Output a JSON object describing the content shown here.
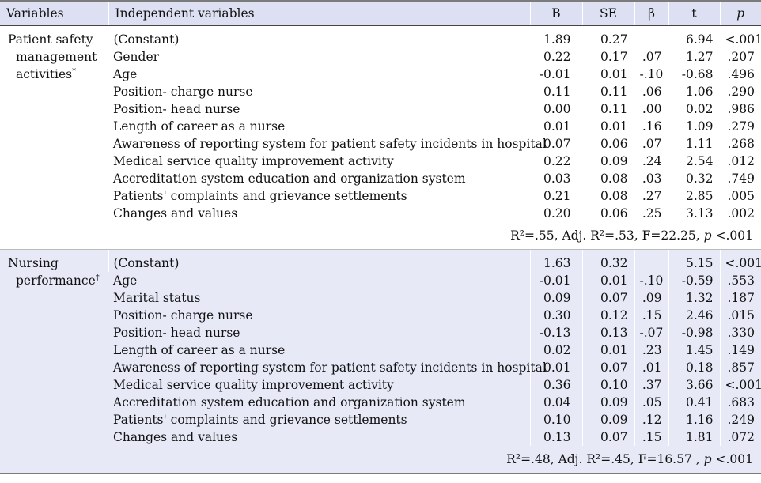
{
  "headers": {
    "variables": "Variables",
    "independent": "Independent variables",
    "B": "B",
    "SE": "SE",
    "beta": "β",
    "t": "t",
    "p": "p"
  },
  "groups": [
    {
      "label_line1": "Patient safety",
      "label_line2": "management",
      "label_line3": "activities",
      "label_mark": "*",
      "rows": [
        {
          "name": "(Constant)",
          "B": "1.89",
          "SE": "0.27",
          "beta": "",
          "t": "6.94",
          "p": "<.001"
        },
        {
          "name": "Gender",
          "B": "0.22",
          "SE": "0.17",
          "beta": ".07",
          "t": "1.27",
          "p": ".207"
        },
        {
          "name": "Age",
          "B": "-0.01",
          "SE": "0.01",
          "beta": "-.10",
          "t": "-0.68",
          "p": ".496"
        },
        {
          "name": "Position- charge nurse",
          "B": "0.11",
          "SE": "0.11",
          "beta": ".06",
          "t": "1.06",
          "p": ".290"
        },
        {
          "name": "Position- head nurse",
          "B": "0.00",
          "SE": "0.11",
          "beta": ".00",
          "t": "0.02",
          "p": ".986"
        },
        {
          "name": "Length of career as a nurse",
          "B": "0.01",
          "SE": "0.01",
          "beta": ".16",
          "t": "1.09",
          "p": ".279"
        },
        {
          "name": "Awareness of reporting system for patient safety incidents in hospital",
          "B": "0.07",
          "SE": "0.06",
          "beta": ".07",
          "t": "1.11",
          "p": ".268"
        },
        {
          "name": "Medical service quality improvement activity",
          "B": "0.22",
          "SE": "0.09",
          "beta": ".24",
          "t": "2.54",
          "p": ".012"
        },
        {
          "name": "Accreditation system education and organization system",
          "B": "0.03",
          "SE": "0.08",
          "beta": ".03",
          "t": "0.32",
          "p": ".749"
        },
        {
          "name": "Patients' complaints and grievance settlements",
          "B": "0.21",
          "SE": "0.08",
          "beta": ".27",
          "t": "2.85",
          "p": ".005"
        },
        {
          "name": "Changes and values",
          "B": "0.20",
          "SE": "0.06",
          "beta": ".25",
          "t": "3.13",
          "p": ".002"
        }
      ],
      "summary": {
        "r2": "R²=.55, Adj. R²=.53, F=22.25,",
        "p_label": "p",
        "p_value": "<.001"
      }
    },
    {
      "label_line1": "Nursing",
      "label_line2": "performance",
      "label_line3": "",
      "label_mark": "†",
      "rows": [
        {
          "name": "(Constant)",
          "B": "1.63",
          "SE": "0.32",
          "beta": "",
          "t": "5.15",
          "p": "<.001"
        },
        {
          "name": "Age",
          "B": "-0.01",
          "SE": "0.01",
          "beta": "-.10",
          "t": "-0.59",
          "p": ".553"
        },
        {
          "name": "Marital status",
          "B": "0.09",
          "SE": "0.07",
          "beta": ".09",
          "t": "1.32",
          "p": ".187"
        },
        {
          "name": "Position- charge nurse",
          "B": "0.30",
          "SE": "0.12",
          "beta": ".15",
          "t": "2.46",
          "p": ".015"
        },
        {
          "name": "Position- head nurse",
          "B": "-0.13",
          "SE": "0.13",
          "beta": "-.07",
          "t": "-0.98",
          "p": ".330"
        },
        {
          "name": "Length of career as a nurse",
          "B": "0.02",
          "SE": "0.01",
          "beta": ".23",
          "t": "1.45",
          "p": ".149"
        },
        {
          "name": "Awareness of reporting system for patient safety incidents in hospital",
          "B": "0.01",
          "SE": "0.07",
          "beta": ".01",
          "t": "0.18",
          "p": ".857"
        },
        {
          "name": "Medical service quality improvement activity",
          "B": "0.36",
          "SE": "0.10",
          "beta": ".37",
          "t": "3.66",
          "p": "<.001"
        },
        {
          "name": "Accreditation system education and organization system",
          "B": "0.04",
          "SE": "0.09",
          "beta": ".05",
          "t": "0.41",
          "p": ".683"
        },
        {
          "name": "Patients' complaints and grievance settlements",
          "B": "0.10",
          "SE": "0.09",
          "beta": ".12",
          "t": "1.16",
          "p": ".249"
        },
        {
          "name": "Changes and values",
          "B": "0.13",
          "SE": "0.07",
          "beta": ".15",
          "t": "1.81",
          "p": ".072"
        }
      ],
      "summary": {
        "r2": "R²=.48, Adj. R²=.45, F=16.57 ,",
        "p_label": "p",
        "p_value": "<.001"
      }
    }
  ]
}
